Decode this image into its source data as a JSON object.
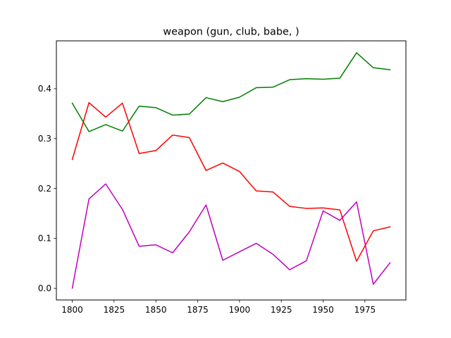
{
  "chart_data": {
    "type": "line",
    "title": "weapon (gun, club, babe, )",
    "xlabel": "",
    "ylabel": "",
    "xlim": [
      1790.5,
      1999.5
    ],
    "ylim": [
      -0.0236,
      0.4959
    ],
    "x": [
      1800,
      1810,
      1820,
      1830,
      1840,
      1850,
      1860,
      1870,
      1880,
      1890,
      1900,
      1910,
      1920,
      1930,
      1940,
      1950,
      1960,
      1970,
      1980,
      1990
    ],
    "x_ticks": [
      1800,
      1825,
      1850,
      1875,
      1900,
      1925,
      1950,
      1975
    ],
    "y_ticks": [
      0.0,
      0.1,
      0.2,
      0.3,
      0.4
    ],
    "x_tick_labels": [
      "1800",
      "1825",
      "1850",
      "1875",
      "1900",
      "1925",
      "1950",
      "1975"
    ],
    "y_tick_labels": [
      "0.0",
      "0.1",
      "0.2",
      "0.3",
      "0.4"
    ],
    "grid": false,
    "legend": "none",
    "series": [
      {
        "color": "#008000",
        "values": [
          0.371,
          0.314,
          0.328,
          0.315,
          0.365,
          0.362,
          0.347,
          0.349,
          0.382,
          0.374,
          0.383,
          0.402,
          0.403,
          0.418,
          0.42,
          0.419,
          0.421,
          0.472,
          0.442,
          0.438
        ]
      },
      {
        "color": "#ff0000",
        "values": [
          0.258,
          0.372,
          0.343,
          0.371,
          0.27,
          0.276,
          0.307,
          0.302,
          0.236,
          0.251,
          0.234,
          0.195,
          0.193,
          0.164,
          0.16,
          0.161,
          0.157,
          0.054,
          0.115,
          0.123
        ]
      },
      {
        "color": "#bf00bf",
        "values": [
          0.0,
          0.179,
          0.209,
          0.158,
          0.084,
          0.087,
          0.071,
          0.113,
          0.167,
          0.056,
          0.073,
          0.09,
          0.068,
          0.037,
          0.055,
          0.155,
          0.136,
          0.173,
          0.008,
          0.051
        ]
      }
    ]
  }
}
